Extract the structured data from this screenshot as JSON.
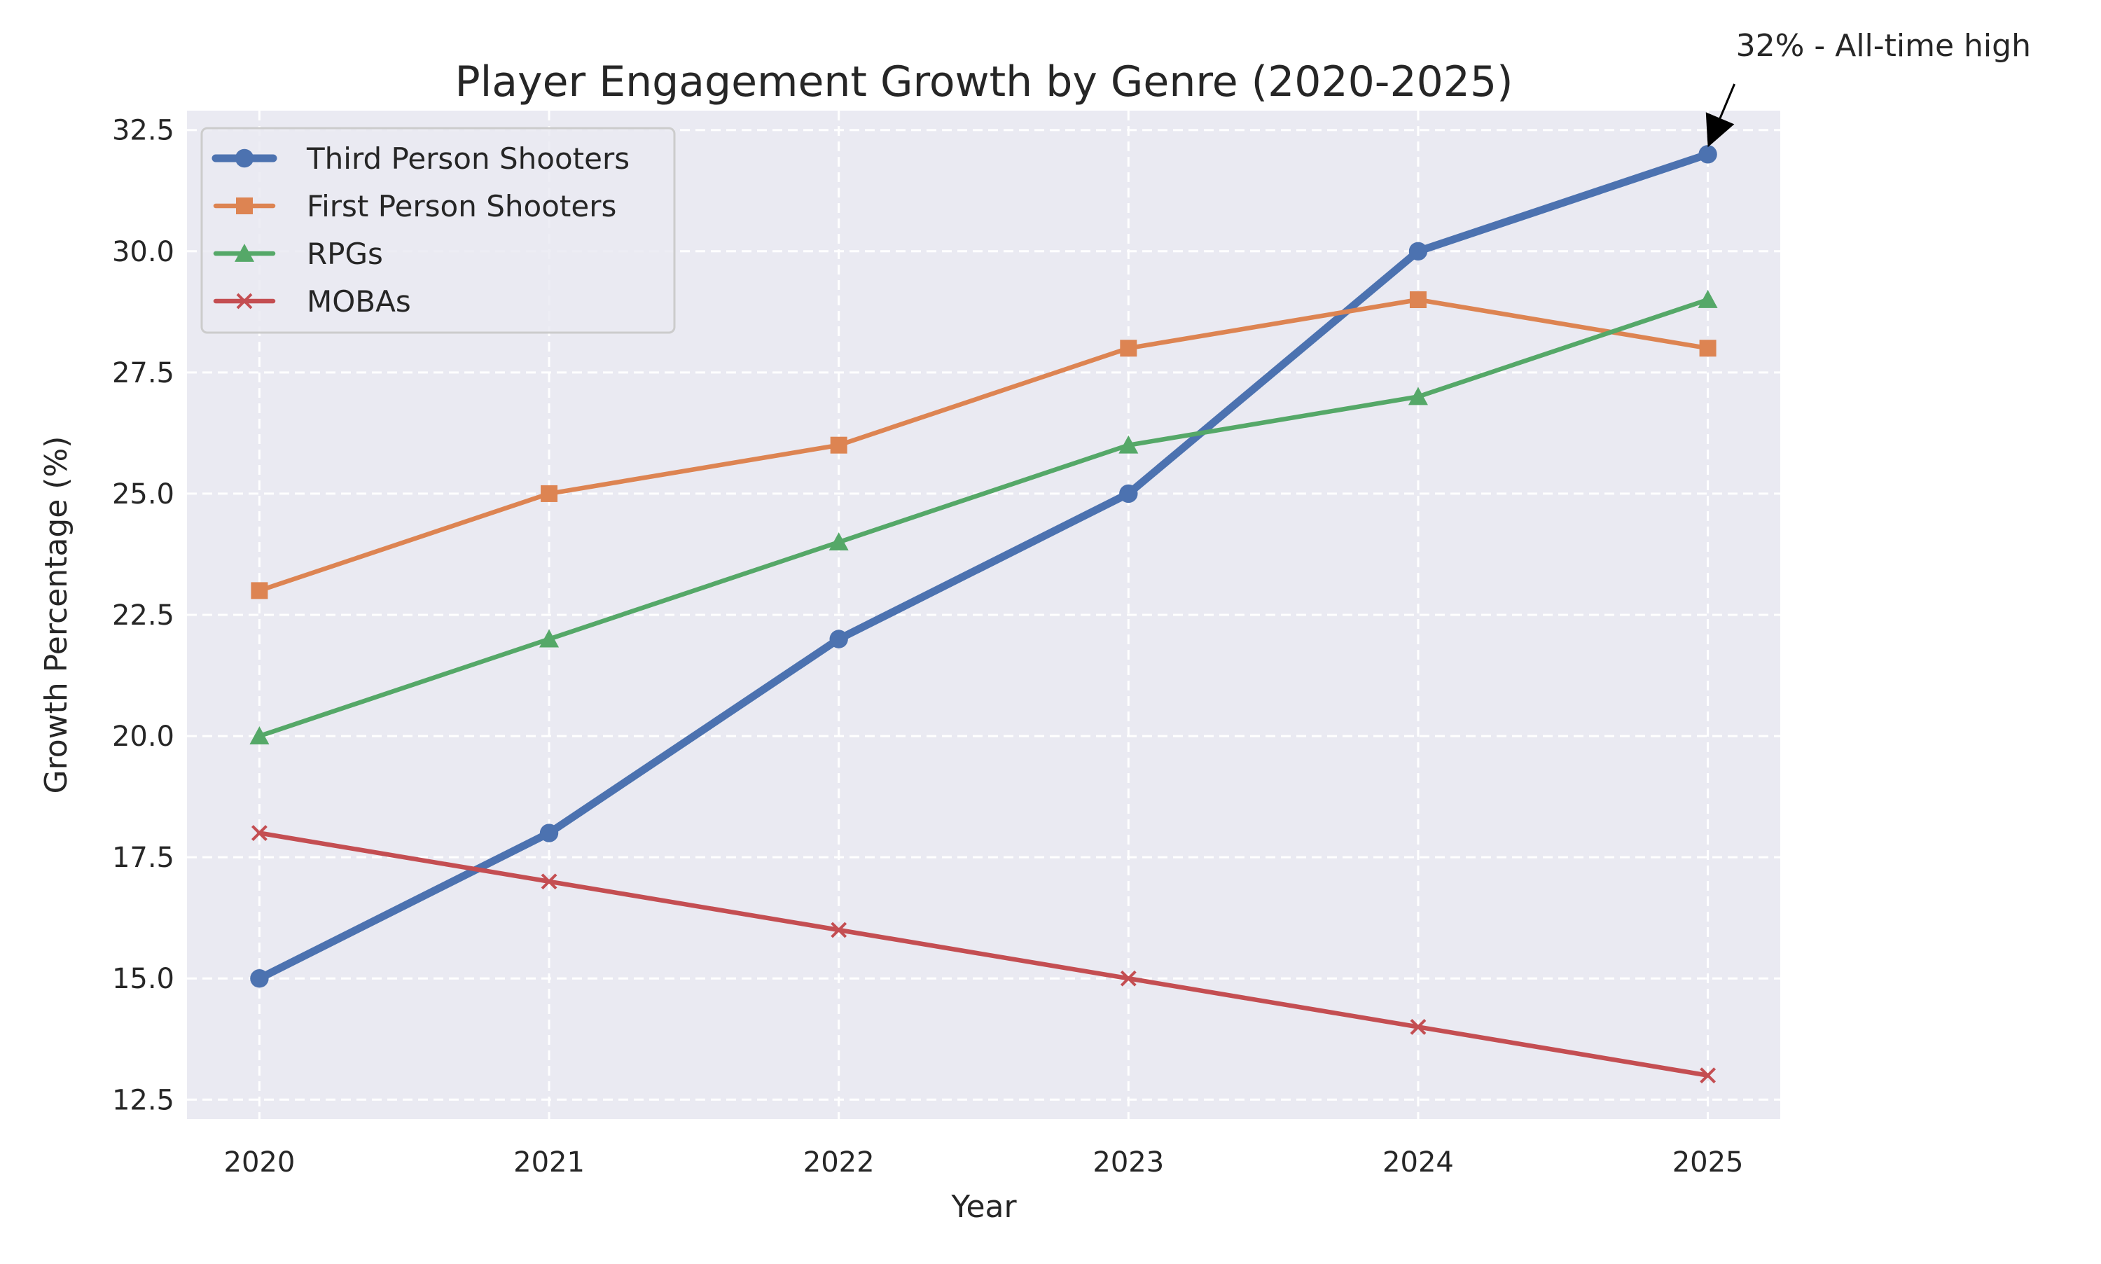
{
  "chart_data": {
    "type": "line",
    "title": "Player Engagement Growth by Genre (2020-2025)",
    "xlabel": "Year",
    "ylabel": "Growth Percentage (%)",
    "x": [
      2020,
      2021,
      2022,
      2023,
      2024,
      2025
    ],
    "x_tick_labels": [
      "2020",
      "2021",
      "2022",
      "2023",
      "2024",
      "2025"
    ],
    "ylim": [
      12.1,
      32.9
    ],
    "y_ticks": [
      12.5,
      15.0,
      17.5,
      20.0,
      22.5,
      25.0,
      27.5,
      30.0,
      32.5
    ],
    "y_tick_labels": [
      "12.5",
      "15.0",
      "17.5",
      "20.0",
      "22.5",
      "25.0",
      "27.5",
      "30.0",
      "32.5"
    ],
    "grid": true,
    "legend_position": "top-left",
    "series": [
      {
        "name": "Third Person Shooters",
        "values": [
          15,
          18,
          22,
          25,
          30,
          32
        ],
        "color": "#4c72b0",
        "marker": "circle",
        "emphasis": "thick"
      },
      {
        "name": "First Person Shooters",
        "values": [
          23,
          25,
          26,
          28,
          29,
          28
        ],
        "color": "#dd8452",
        "marker": "square"
      },
      {
        "name": "RPGs",
        "values": [
          20,
          22,
          24,
          26,
          27,
          29
        ],
        "color": "#55a868",
        "marker": "triangle"
      },
      {
        "name": "MOBAs",
        "values": [
          18,
          17,
          16,
          15,
          14,
          13
        ],
        "color": "#c44e52",
        "marker": "x"
      }
    ],
    "annotations": [
      {
        "text": "32% - All-time high",
        "x": 2025,
        "y": 32,
        "series": "Third Person Shooters"
      }
    ],
    "colors": {
      "plot_background": "#eaeaf2",
      "grid": "#ffffff",
      "text": "#262626"
    }
  }
}
